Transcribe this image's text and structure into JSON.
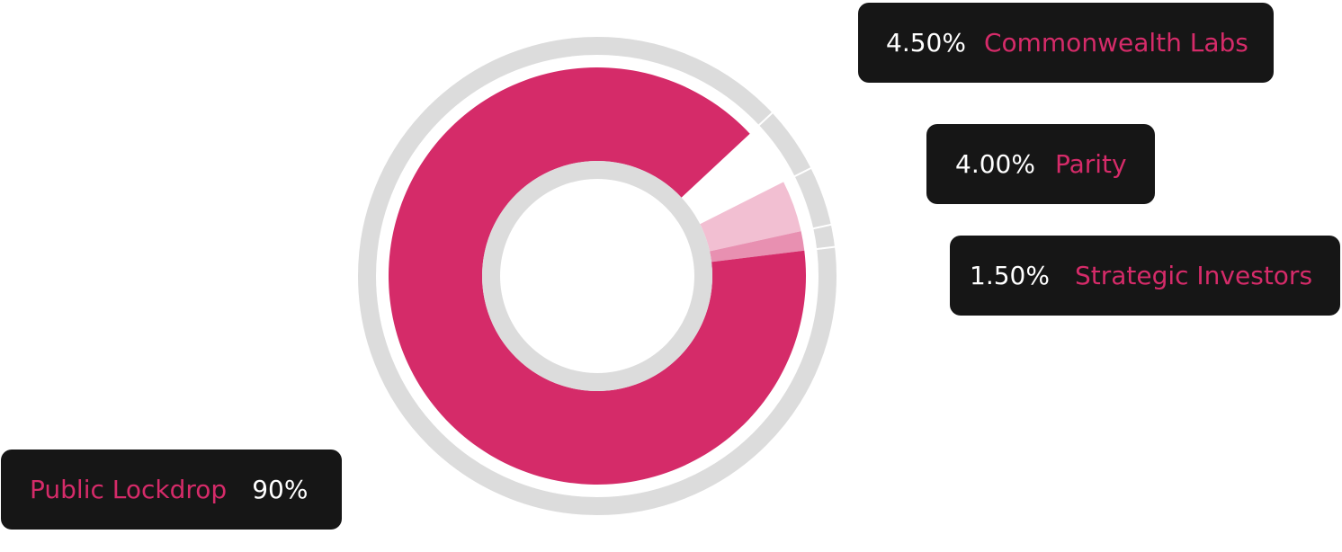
{
  "chart_data": {
    "type": "pie",
    "subtype": "donut",
    "slices": [
      {
        "label": "Commonwealth Labs",
        "value": 4.5,
        "display": "4.50%",
        "color": "#ffffff"
      },
      {
        "label": "Parity",
        "value": 4.0,
        "display": "4.00%",
        "color": "#f2bfd2"
      },
      {
        "label": "Strategic Investors",
        "value": 1.5,
        "display": "1.50%",
        "color": "#e890b1"
      },
      {
        "label": "Public Lockdrop",
        "value": 90,
        "display": "90%",
        "color": "#d52b69"
      }
    ],
    "legend": {
      "commonwealth": {
        "pct": "4.50%",
        "name": "Commonwealth Labs"
      },
      "parity": {
        "pct": "4.00%",
        "name": "Parity"
      },
      "strategic": {
        "pct": "1.50%",
        "name": "Strategic Investors"
      },
      "public": {
        "name": "Public Lockdrop",
        "pct": "90%"
      }
    },
    "colors": {
      "ring": "#dcdcdc",
      "primary": "#d52b69",
      "label_bg": "#161616"
    }
  }
}
